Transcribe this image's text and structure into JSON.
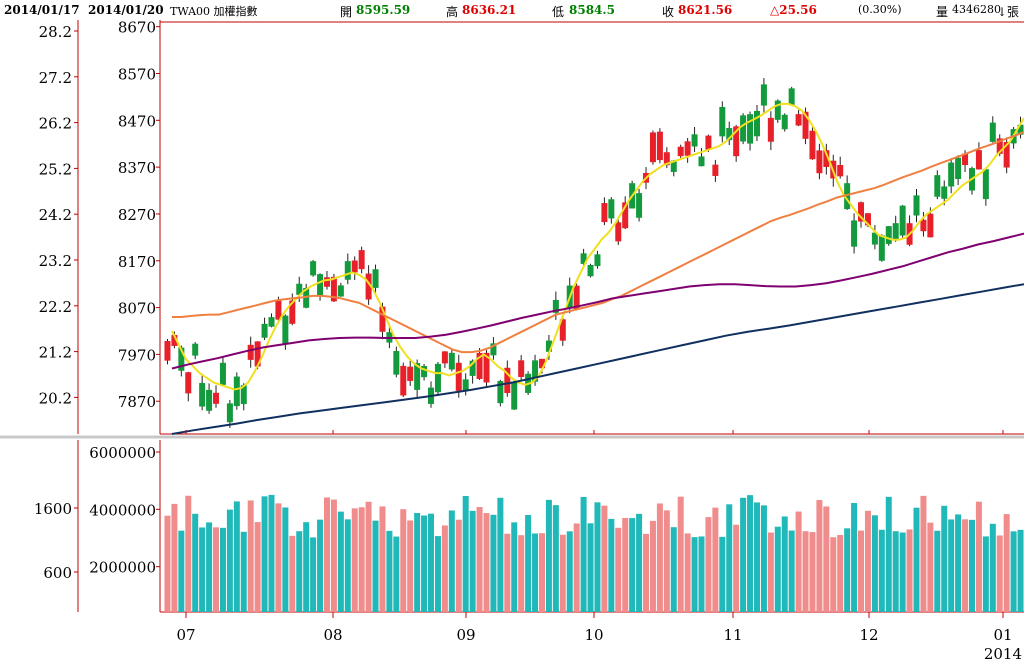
{
  "header": {
    "date_left": "2014/01/17",
    "date_right": "2014/01/20",
    "symbol": "TWA00 加權指數",
    "open_label": "開",
    "open_value": "8595.59",
    "high_label": "高",
    "high_value": "8636.21",
    "low_label": "低",
    "low_value": "8584.5",
    "close_label": "收",
    "close_value": "8621.56",
    "change": "△25.56",
    "change_pct": "(0.30%)",
    "volume_label": "量",
    "volume_value": "4346280",
    "volume_unit": "↓張"
  },
  "colors": {
    "up": "#e8202a",
    "down": "#129a3c",
    "vol_up": "#f08c8c",
    "vol_down": "#20b8b8",
    "ma5": "#f0e020",
    "ma20": "#f08040",
    "ma60": "#800070",
    "ma120": "#103060",
    "axis": "#c00000"
  },
  "chart_data": [
    {
      "type": "candlestick",
      "title": "",
      "price_ticks": [
        8670,
        8570,
        8470,
        8370,
        8270,
        8170,
        8070,
        7970,
        7870
      ],
      "left_ticks": [
        "28.2",
        "27.2",
        "26.2",
        "25.2",
        "24.2",
        "23.2",
        "22.2",
        "21.2",
        "20.2"
      ],
      "ylim": [
        7800,
        8680
      ],
      "x_labels": [
        "07",
        "08",
        "09",
        "10",
        "11",
        "12",
        "01"
      ],
      "x_label_year": "2014",
      "series": [
        {
          "name": "MA5",
          "values": [
            8020,
            7990,
            7960,
            7945,
            7930,
            7920,
            7910,
            7905,
            7900,
            7895,
            7898,
            7910,
            7935,
            7965,
            8000,
            8030,
            8055,
            8075,
            8090,
            8105,
            8115,
            8122,
            8128,
            8130,
            8135,
            8140,
            8145,
            8140,
            8130,
            8110,
            8080,
            8045,
            8010,
            7985,
            7965,
            7950,
            7940,
            7935,
            7930,
            7930,
            7925,
            7930,
            7935,
            7945,
            7960,
            7970,
            7960,
            7945,
            7935,
            7920,
            7910,
            7905,
            7910,
            7925,
            7955,
            7995,
            8035,
            8075,
            8115,
            8145,
            8175,
            8195,
            8215,
            8230,
            8250,
            8275,
            8300,
            8320,
            8340,
            8355,
            8365,
            8375,
            8380,
            8385,
            8390,
            8395,
            8400,
            8405,
            8410,
            8415,
            8425,
            8440,
            8455,
            8465,
            8472,
            8480,
            8490,
            8500,
            8505,
            8505,
            8500,
            8490,
            8470,
            8445,
            8415,
            8380,
            8340,
            8310,
            8290,
            8270,
            8255,
            8240,
            8225,
            8220,
            8215,
            8215,
            8220,
            8235,
            8255,
            8270,
            8280,
            8290,
            8300,
            8315,
            8330,
            8340,
            8350,
            8360,
            8375,
            8395,
            8410,
            8425,
            8450,
            8475
          ],
          "x0_index": 0
        },
        {
          "name": "MA20",
          "values": [
            8050,
            8050,
            8052,
            8054,
            8055,
            8055,
            8060,
            8065,
            8070,
            8075,
            8080,
            8085,
            8088,
            8090,
            8092,
            8095,
            8095,
            8093,
            8090,
            8085,
            8080,
            8070,
            8060,
            8050,
            8040,
            8030,
            8020,
            8010,
            8000,
            7990,
            7980,
            7975,
            7975,
            7978,
            7985,
            7995,
            8005,
            8015,
            8025,
            8035,
            8045,
            8055,
            8060,
            8065,
            8070,
            8075,
            8080,
            8088,
            8095,
            8105,
            8115,
            8125,
            8135,
            8145,
            8155,
            8165,
            8175,
            8185,
            8195,
            8205,
            8215,
            8225,
            8235,
            8245,
            8255,
            8262,
            8268,
            8275,
            8282,
            8290,
            8297,
            8305,
            8310,
            8315,
            8320,
            8325,
            8332,
            8340,
            8348,
            8355,
            8362,
            8370,
            8378,
            8385,
            8393,
            8400,
            8408,
            8415,
            8422,
            8430,
            8437,
            8445
          ],
          "x0_index": 0
        },
        {
          "name": "MA60",
          "values": [
            7940,
            7948,
            7955,
            7962,
            7970,
            7978,
            7985,
            7990,
            7995,
            8000,
            8003,
            8005,
            8006,
            8006,
            8005,
            8005,
            8005,
            8008,
            8012,
            8018,
            8025,
            8032,
            8040,
            8048,
            8055,
            8062,
            8068,
            8075,
            8082,
            8090,
            8095,
            8100,
            8105,
            8110,
            8115,
            8118,
            8120,
            8120,
            8118,
            8116,
            8115,
            8115,
            8118,
            8122,
            8128,
            8135,
            8142,
            8150,
            8158,
            8168,
            8178,
            8188,
            8196,
            8205,
            8212,
            8220,
            8228
          ],
          "x0_index": 0
        },
        {
          "name": "MA120",
          "values": [
            7800,
            7808,
            7815,
            7822,
            7830,
            7837,
            7844,
            7850,
            7856,
            7862,
            7868,
            7874,
            7880,
            7887,
            7894,
            7902,
            7910,
            7920,
            7930,
            7940,
            7950,
            7960,
            7970,
            7980,
            7990,
            8000,
            8010,
            8018,
            8025,
            8032,
            8040,
            8048,
            8056,
            8064,
            8072,
            8080,
            8088,
            8096,
            8104,
            8112,
            8120
          ],
          "x0_index": 0
        }
      ]
    },
    {
      "type": "bar",
      "title": "",
      "volume_ticks": [
        6000000,
        4000000,
        2000000
      ],
      "volume_tick_labels": [
        "6000000",
        "4000000",
        "2000000"
      ],
      "left_ticks": [
        "1600",
        "600"
      ],
      "ylim": [
        0,
        6000000
      ]
    }
  ]
}
